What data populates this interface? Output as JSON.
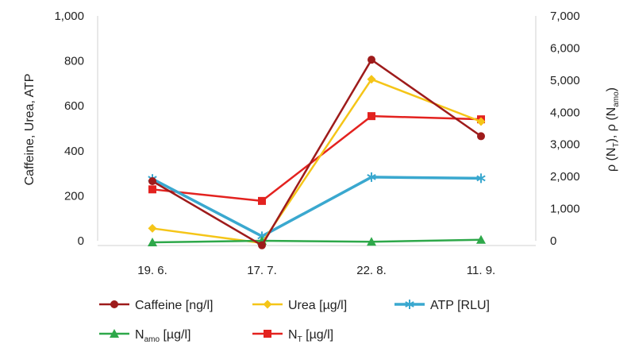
{
  "chart_data": {
    "type": "line",
    "categories": [
      "19. 6.",
      "17. 7.",
      "22. 8.",
      "11. 9."
    ],
    "left_axis": {
      "label": "Caffeine, Urea, ATP",
      "ylim": [
        0,
        1000
      ],
      "ticks": [
        "0",
        "200",
        "400",
        "600",
        "800",
        "1,000"
      ]
    },
    "right_axis": {
      "label_parts": [
        "ρ (N",
        "T",
        "), ρ (N",
        "amo",
        ")"
      ],
      "ylim": [
        0,
        7000
      ],
      "ticks": [
        "0",
        "1,000",
        "2,000",
        "3,000",
        "4,000",
        "5,000",
        "6,000",
        "7,000"
      ]
    },
    "grid": false,
    "legend_position": "bottom",
    "series": [
      {
        "key": "caffeine",
        "name": "Caffeine [ng/l]",
        "name_main": "Caffeine [ng/l]",
        "name_sub": "",
        "name_rest": "",
        "axis": "left",
        "color": "#9e1b1b",
        "marker": "circle",
        "values": [
          265,
          -20,
          805,
          465
        ]
      },
      {
        "key": "urea",
        "name": "Urea [µg/l]",
        "name_main": "Urea [µg/l]",
        "name_sub": "",
        "name_rest": "",
        "axis": "left",
        "color": "#f5c518",
        "marker": "diamond",
        "values": [
          55,
          -10,
          718,
          530
        ]
      },
      {
        "key": "atp",
        "name": "ATP [RLU]",
        "name_main": "ATP [RLU]",
        "name_sub": "",
        "name_rest": "",
        "axis": "left",
        "color": "#3aa8cf",
        "marker": "asterisk",
        "values": [
          275,
          20,
          283,
          278
        ]
      },
      {
        "key": "namo",
        "name": "Namo [µg/l]",
        "name_main": "N",
        "name_sub": "amo",
        "name_rest": " [µg/l]",
        "axis": "right",
        "color": "#2ea84a",
        "marker": "triangle",
        "values": [
          -50,
          0,
          -30,
          30
        ]
      },
      {
        "key": "nt",
        "name": "NT [µg/l]",
        "name_main": "N",
        "name_sub": "T",
        "name_rest": " [µg/l]",
        "axis": "right",
        "color": "#e3221f",
        "marker": "square",
        "values": [
          1600,
          1240,
          3880,
          3780
        ]
      }
    ]
  }
}
